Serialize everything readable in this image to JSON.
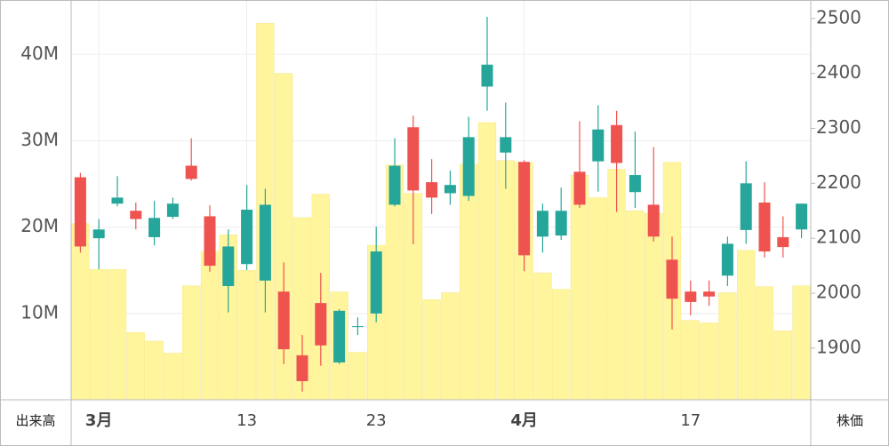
{
  "chart_data": {
    "type": "candlestick",
    "ylabel": "出来高",
    "y2label": "株価",
    "categories": [
      null,
      "3月",
      null,
      null,
      null,
      null,
      null,
      null,
      null,
      "13",
      null,
      null,
      null,
      null,
      null,
      null,
      "23",
      null,
      null,
      null,
      null,
      null,
      null,
      null,
      "4月",
      null,
      null,
      null,
      null,
      null,
      null,
      null,
      null,
      "17",
      null,
      null,
      null,
      null,
      null,
      null
    ],
    "volume": [
      20.4,
      15.1,
      15.1,
      7.8,
      6.8,
      5.4,
      13.2,
      17.2,
      19.1,
      15.0,
      43.6,
      37.8,
      21.1,
      23.8,
      12.5,
      5.5,
      17.9,
      27.2,
      23.9,
      11.6,
      12.4,
      27.3,
      32.1,
      27.7,
      27.5,
      14.7,
      12.8,
      26.0,
      23.4,
      26.7,
      21.9,
      21.6,
      27.5,
      9.2,
      8.9,
      12.4,
      17.3,
      13.1,
      8.0,
      13.2
    ],
    "open": [
      2085,
      2116,
      2174,
      2135,
      2137,
      2163,
      2208,
      2050,
      2085,
      2152,
      2161,
      1898,
      1840,
      1905,
      1968,
      1940,
      2076,
      2232,
      2187,
      2174,
      2197,
      2284,
      2416,
      2284,
      2069,
      2150,
      2150,
      2161,
      2298,
      2237,
      2215,
      2103,
      1990,
      1984,
      1994,
      2090,
      2200,
      2076,
      2084,
      2163
    ],
    "high": [
      2219,
      2135,
      2213,
      2165,
      2168,
      2174,
      2282,
      2160,
      2116,
      2197,
      2190,
      2056,
      1924,
      2037,
      1971,
      1956,
      2121,
      2282,
      2323,
      2244,
      2223,
      2321,
      2503,
      2347,
      2242,
      2163,
      2192,
      2313,
      2342,
      2332,
      2294,
      2266,
      2103,
      2023,
      2023,
      2103,
      2240,
      2202,
      2140,
      2163
    ],
    "low": [
      2074,
      2044,
      2158,
      2116,
      2087,
      2135,
      2205,
      2039,
      1965,
      2042,
      1965,
      1871,
      1821,
      1868,
      1871,
      1924,
      1947,
      2158,
      2089,
      2144,
      2161,
      2168,
      2332,
      2190,
      2040,
      2074,
      2097,
      2155,
      2185,
      2148,
      2155,
      2094,
      1934,
      1960,
      1977,
      2013,
      2090,
      2065,
      2065,
      2100
    ],
    "close": [
      2211,
      2100,
      2163,
      2150,
      2102,
      2139,
      2232,
      2140,
      2013,
      2053,
      2023,
      2003,
      1887,
      1982,
      1874,
      1940,
      1963,
      2161,
      2302,
      2202,
      2182,
      2177,
      2376,
      2256,
      2239,
      2103,
      2105,
      2221,
      2240,
      2306,
      2184,
      2161,
      2061,
      2003,
      2003,
      2032,
      2115,
      2165,
      2102,
      2116
    ],
    "ylim": [
      0,
      46.2
    ],
    "yticks": [
      {
        "value": 10,
        "label": "10M"
      },
      {
        "value": 20,
        "label": "20M"
      },
      {
        "value": 30,
        "label": "30M"
      },
      {
        "value": 40,
        "label": "40M"
      }
    ],
    "y2lim": [
      1806,
      2532
    ],
    "y2ticks": [
      1900,
      2000,
      2100,
      2200,
      2300,
      2400,
      2500
    ],
    "volume_color": "#fff59d",
    "up_color": "#ef5350",
    "down_color": "#26a69a",
    "grid": true
  }
}
